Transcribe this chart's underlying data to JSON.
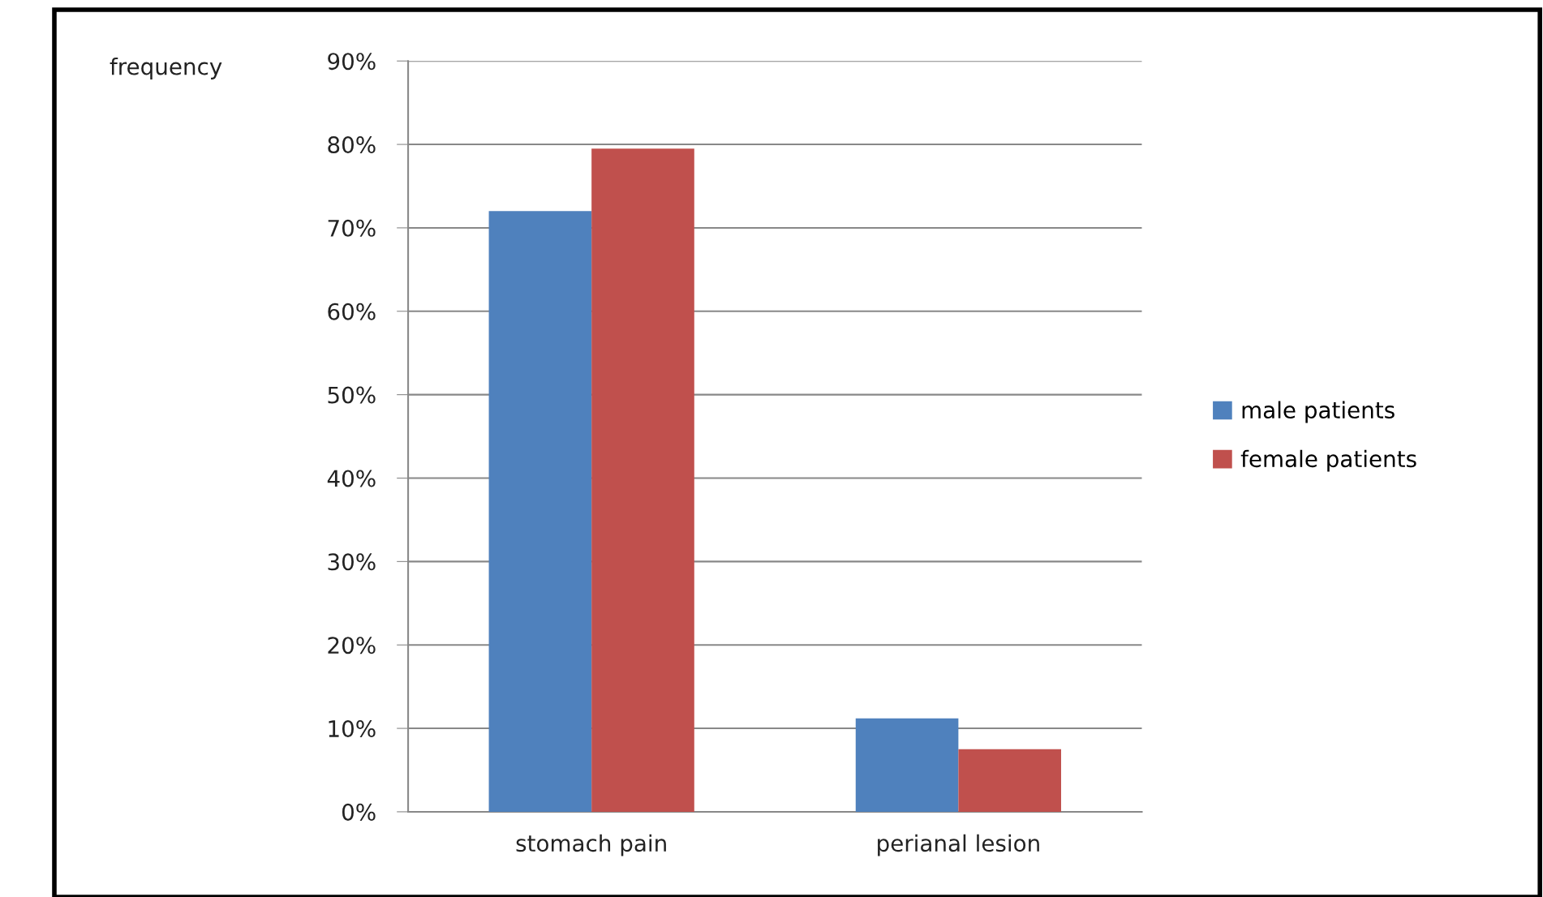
{
  "chart_data": {
    "type": "bar",
    "ylabel": "frequency",
    "categories": [
      "stomach pain",
      "perianal lesion"
    ],
    "series": [
      {
        "name": "male patients",
        "color": "#4f81bd",
        "values": [
          72,
          11.2
        ]
      },
      {
        "name": "female patients",
        "color": "#c0504d",
        "values": [
          79.5,
          7.5
        ]
      }
    ],
    "ylim": [
      0,
      90
    ],
    "yticks": [
      {
        "value": 0,
        "label": "0%"
      },
      {
        "value": 10,
        "label": "10%"
      },
      {
        "value": 20,
        "label": "20%"
      },
      {
        "value": 30,
        "label": "30%"
      },
      {
        "value": 40,
        "label": "40%"
      },
      {
        "value": 50,
        "label": "50%"
      },
      {
        "value": 60,
        "label": "60%"
      },
      {
        "value": 70,
        "label": "70%"
      },
      {
        "value": 80,
        "label": "80%"
      },
      {
        "value": 90,
        "label": "90%"
      }
    ],
    "grid": "y",
    "legend": "right"
  }
}
